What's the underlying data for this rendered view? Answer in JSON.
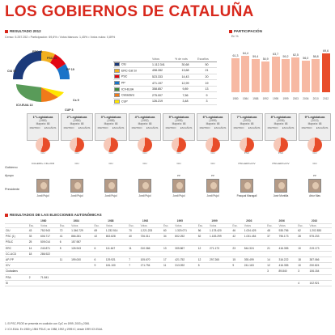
{
  "title": "LOS GOBIERNOS DE CATALUÑA",
  "result_section": "RESULTADO 2012",
  "result_meta": "Censo: 5.257.252 • Participación: 69,6% • Votos blancos: 1,45% • Votos nulos: 0,89%",
  "hemicycle": {
    "seats_left": [
      "50",
      "21",
      "20",
      "19",
      "13",
      "9",
      "3"
    ],
    "labels": [
      "CiU 50",
      "ERC 21",
      "PSC 20",
      "PP 19",
      "ICV-EUiA 13",
      "Cs 9",
      "CUP 3"
    ]
  },
  "results_table": {
    "headers": [
      "",
      "Votos",
      "% de vots",
      "Escaños"
    ],
    "rows": [
      {
        "party": "CiU",
        "votes": "1.112.341",
        "pct": "30,68",
        "seats": "50",
        "color": "#1c3a7a"
      },
      {
        "party": "ERC-Cat Sí",
        "votes": "498.282",
        "pct": "13,68",
        "seats": "21",
        "color": "#f2b01e"
      },
      {
        "party": "PSC",
        "votes": "523.333",
        "pct": "14,43",
        "seats": "20",
        "color": "#e30613"
      },
      {
        "party": "PP",
        "votes": "471.197",
        "pct": "12,99",
        "seats": "19",
        "color": "#1a73c8"
      },
      {
        "party": "ICV-EUiA",
        "votes": "358.857",
        "pct": "9,89",
        "seats": "13",
        "color": "#3c8a3c"
      },
      {
        "party": "Ciutadans",
        "votes": "275.007",
        "pct": "7,56",
        "seats": "9",
        "color": "#f07a1a"
      },
      {
        "party": "CUP",
        "votes": "126.219",
        "pct": "3,48",
        "seats": "3",
        "color": "#ffe600"
      }
    ]
  },
  "participation_section": "PARTICIPACIÓN",
  "participation_unit": "En %",
  "chart_data": {
    "type": "bar",
    "categories": [
      "1980",
      "1984",
      "1988",
      "1992",
      "1995",
      "1999",
      "2003",
      "2006",
      "2010",
      "2012"
    ],
    "values": [
      61.3,
      64.4,
      59.4,
      54.9,
      63.7,
      59.2,
      62.5,
      56.0,
      58.8,
      69.6
    ],
    "value_labels": [
      "61,3",
      "64,4",
      "59,4",
      "54,9",
      "63,7",
      "59,2",
      "62,5",
      "56,0",
      "58,8",
      "69,6"
    ],
    "ylim": [
      0,
      75
    ]
  },
  "legislatures": [
    {
      "name": "1ª Legislatura",
      "years": "(1980)",
      "maj": "Mayoría: 68",
      "party": "CiU",
      "coal": "CiU+ERC+ CD+UCD",
      "support": "",
      "pres": "Jordi Pujol"
    },
    {
      "name": "2ª Legislatura",
      "years": "(1984)",
      "maj": "Mayoría: 68",
      "party": "CiU",
      "coal": "CiU",
      "support": "",
      "pres": "Jordi Pujol"
    },
    {
      "name": "3ª Legislatura",
      "years": "(1988)",
      "maj": "Mayoría: 68",
      "party": "CiU",
      "coal": "CiU",
      "support": "",
      "pres": "Jordi Pujol"
    },
    {
      "name": "4ª Legislatura",
      "years": "(1992)",
      "maj": "Mayoría: 68",
      "party": "CiU",
      "coal": "CiU",
      "support": "",
      "pres": "Jordi Pujol"
    },
    {
      "name": "5ª Legislatura",
      "years": "(1995)",
      "maj": "Mayoría: 68",
      "party": "CiU",
      "coal": "CiU",
      "support": "PP",
      "pres": "Jordi Pujol"
    },
    {
      "name": "6ª Legislatura",
      "years": "(1999)",
      "maj": "Mayoría: 68",
      "party": "CiU",
      "coal": "CiU",
      "support": "PP",
      "pres": "Jordi Pujol"
    },
    {
      "name": "7ª Legislatura",
      "years": "(2003)",
      "maj": "Mayoría: 68",
      "party": "PSC",
      "coal": "PSC+ERC+ICV",
      "support": "",
      "pres": "Pasqual Maragall"
    },
    {
      "name": "8ª Legislatura",
      "years": "(2006)",
      "maj": "Mayoría: 68",
      "party": "PSC",
      "coal": "PSC+ERC+ICV",
      "support": "",
      "pres": "José Montilla"
    },
    {
      "name": "9ª Legislatura",
      "years": "(2010)",
      "maj": "Mayoría: 68",
      "party": "CiU",
      "coal": "CiU",
      "support": "PP",
      "pres": "Artur Mas"
    }
  ],
  "legis_row_labels": {
    "party": "PARTIDO",
    "seats": "ESCAÑOS",
    "coal": "Gobierno",
    "support": "Apoyo",
    "pres": "Presidente"
  },
  "history_section": "RESULTADOS DE LAS ELECCIONES AUTONÓMICAS",
  "history": {
    "years": [
      "1980",
      "1984",
      "1988",
      "1992",
      "1995",
      "1999",
      "2003",
      "2006",
      "2010"
    ],
    "sub": [
      "Esc.",
      "Votos"
    ],
    "rows": [
      {
        "party": "CiU",
        "vals": [
          "43",
          "752.943",
          "72",
          "1.346.729",
          "69",
          "1.232.514",
          "70",
          "1.221.233",
          "60",
          "1.320.071",
          "56",
          "1.178.420",
          "46",
          "1.024.425",
          "48",
          "935.756",
          "62",
          "1.202.830"
        ]
      },
      {
        "party": "PSC (1)",
        "vals": [
          "33",
          "606.717",
          "41",
          "866.281",
          "42",
          "802.828",
          "40",
          "726.311",
          "34",
          "802.252",
          "52",
          "1.183.299",
          "42",
          "1.031.454",
          "37",
          "796.173",
          "28",
          "575.233"
        ]
      },
      {
        "party": "PSUC",
        "vals": [
          "25",
          "509.014",
          "6",
          "157.987",
          "",
          "",
          "",
          "",
          "",
          "",
          "",
          "",
          "",
          "",
          "",
          "",
          "",
          ""
        ]
      },
      {
        "party": "ERC",
        "vals": [
          "14",
          "240.871",
          "5",
          "126.943",
          "6",
          "111.647",
          "11",
          "210.366",
          "13",
          "305.867",
          "12",
          "271.173",
          "23",
          "544.324",
          "21",
          "416.355",
          "10",
          "219.173"
        ]
      },
      {
        "party": "CC-UCD",
        "vals": [
          "18",
          "286.922",
          "",
          "",
          "",
          "",
          "",
          "",
          "",
          "",
          "",
          "",
          "",
          "",
          "",
          "",
          "",
          ""
        ]
      },
      {
        "party": "AP-PP",
        "vals": [
          "",
          "",
          "11",
          "199.000",
          "6",
          "129.921",
          "7",
          "105.670",
          "17",
          "421.752",
          "12",
          "297.265",
          "15",
          "393.499",
          "14",
          "316.222",
          "18",
          "387.066"
        ]
      },
      {
        "party": "ICV",
        "vals": [
          "",
          "",
          "",
          "",
          "9",
          "181.100",
          "7",
          "171.794",
          "11",
          "313.092",
          "5",
          "",
          "9",
          "241.163",
          "12",
          "416.355",
          "10",
          "230.824"
        ]
      },
      {
        "party": "Ciutadans",
        "vals": [
          "",
          "",
          "",
          "",
          "",
          "",
          "",
          "",
          "",
          "",
          "",
          "",
          "",
          "",
          "3",
          "89.840",
          "3",
          "106.154"
        ]
      },
      {
        "party": "PSA",
        "vals": [
          "2",
          "71.841",
          "",
          "",
          "",
          "",
          "",
          "",
          "",
          "",
          "",
          "",
          "",
          "",
          "",
          "",
          "",
          ""
        ]
      },
      {
        "party": "SI",
        "vals": [
          "",
          "",
          "",
          "",
          "",
          "",
          "",
          "",
          "",
          "",
          "",
          "",
          "",
          "",
          "",
          "",
          "4",
          "102.921"
        ]
      }
    ]
  },
  "footnotes": [
    "1. El PSC-PSOE se presenta en coalición con CpC en 1999, 2003 y 2006.",
    "2. ICV-EUiA. En 1980 y 1984 PSUC; en 1988, 1992 y 1995 IC; desde 1999 ICV-EUiA."
  ]
}
